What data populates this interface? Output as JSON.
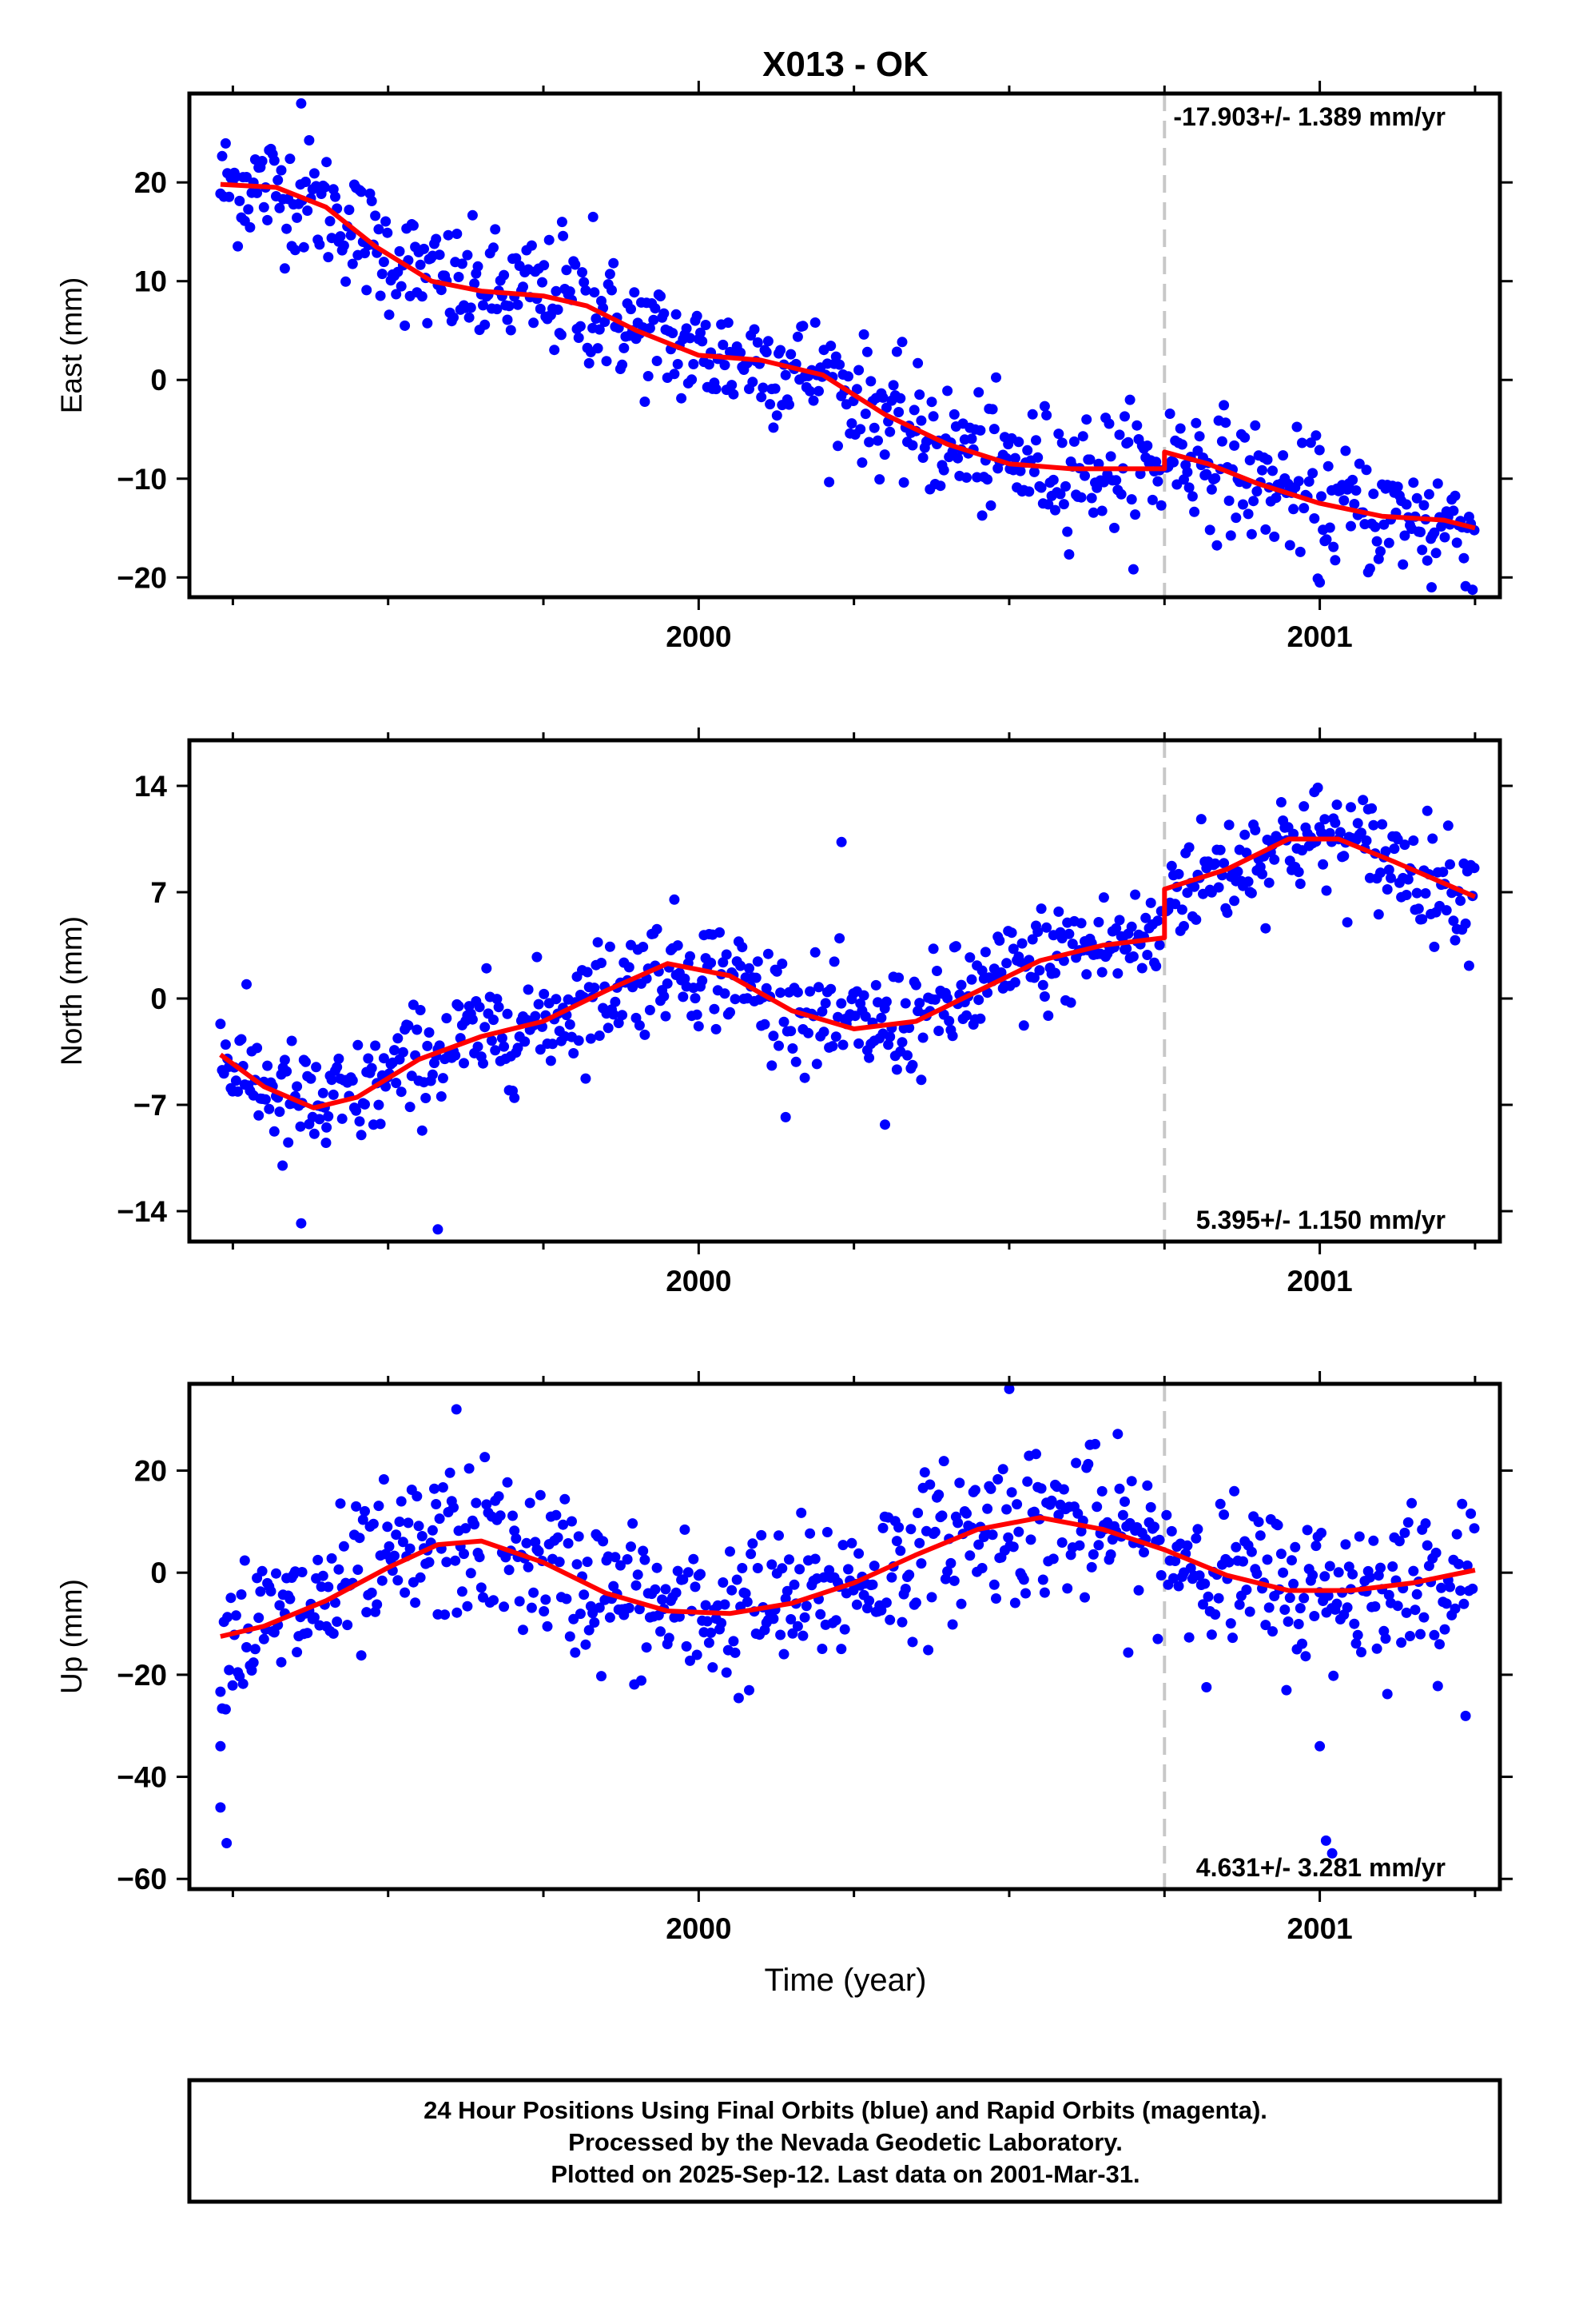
{
  "title": "X013 - OK",
  "x_axis_label": "Time (year)",
  "footer": {
    "line1": "24 Hour Positions Using Final Orbits (blue) and Rapid Orbits (magenta).",
    "line2": "Processed by the Nevada Geodetic Laboratory.",
    "line3": "Plotted on 2025-Sep-12. Last data on 2001-Mar-31."
  },
  "colors": {
    "points": "#0000ff",
    "model": "#ff0000",
    "break_line": "#c8c8c8"
  },
  "chart_data": [
    {
      "type": "scatter",
      "ylabel": "East (mm)",
      "xlim": [
        1999.18,
        2001.29
      ],
      "ylim": [
        -22,
        29
      ],
      "yticks": [
        -20,
        -10,
        0,
        10,
        20
      ],
      "xticks": [
        2000,
        2001
      ],
      "break_at": 2000.75,
      "rate_label": "-17.903+/- 1.389 mm/yr",
      "rate_position": "top-right",
      "model_trend": [
        [
          1999.23,
          19.8
        ],
        [
          1999.32,
          19.5
        ],
        [
          1999.4,
          17.5
        ],
        [
          1999.48,
          13.5
        ],
        [
          1999.57,
          10.0
        ],
        [
          1999.65,
          9.0
        ],
        [
          1999.75,
          8.5
        ],
        [
          1999.82,
          7.5
        ],
        [
          1999.9,
          5.0
        ],
        [
          2000.0,
          2.5
        ],
        [
          2000.1,
          2.0
        ],
        [
          2000.2,
          0.5
        ],
        [
          2000.3,
          -3.5
        ],
        [
          2000.4,
          -6.5
        ],
        [
          2000.5,
          -8.5
        ],
        [
          2000.6,
          -9.0
        ],
        [
          2000.7,
          -9.0
        ],
        [
          2000.75,
          -9.0
        ],
        [
          2000.75,
          -7.3
        ],
        [
          2000.82,
          -8.5
        ],
        [
          2000.9,
          -10.5
        ],
        [
          2001.0,
          -12.5
        ],
        [
          2001.1,
          -13.8
        ],
        [
          2001.2,
          -14.2
        ],
        [
          2001.25,
          -15.0
        ]
      ],
      "residual_scatter": 3.0,
      "outliers": [
        [
          1999.36,
          28.0
        ],
        [
          1999.78,
          16.0
        ],
        [
          1999.83,
          16.5
        ],
        [
          2001.0,
          -20.5
        ],
        [
          2001.18,
          -21.0
        ]
      ]
    },
    {
      "type": "scatter",
      "ylabel": "North (mm)",
      "xlim": [
        1999.18,
        2001.29
      ],
      "ylim": [
        -16,
        17
      ],
      "yticks": [
        -14,
        -7,
        0,
        7,
        14
      ],
      "xticks": [
        2000,
        2001
      ],
      "break_at": 2000.75,
      "rate_label": "5.395+/- 1.150 mm/yr",
      "rate_position": "bottom-right",
      "model_trend": [
        [
          1999.23,
          -3.7
        ],
        [
          1999.3,
          -5.8
        ],
        [
          1999.38,
          -7.2
        ],
        [
          1999.45,
          -6.5
        ],
        [
          1999.55,
          -4.0
        ],
        [
          1999.65,
          -2.5
        ],
        [
          1999.75,
          -1.5
        ],
        [
          1999.85,
          0.5
        ],
        [
          1999.95,
          2.3
        ],
        [
          2000.05,
          1.5
        ],
        [
          2000.15,
          -0.8
        ],
        [
          2000.25,
          -2.0
        ],
        [
          2000.35,
          -1.5
        ],
        [
          2000.45,
          0.5
        ],
        [
          2000.55,
          2.5
        ],
        [
          2000.65,
          3.5
        ],
        [
          2000.75,
          4.0
        ],
        [
          2000.75,
          7.2
        ],
        [
          2000.85,
          8.5
        ],
        [
          2000.95,
          10.5
        ],
        [
          2001.03,
          10.5
        ],
        [
          2001.12,
          9.0
        ],
        [
          2001.25,
          6.7
        ]
      ],
      "residual_scatter": 1.8,
      "outliers": [
        [
          1999.36,
          -14.8
        ],
        [
          1999.58,
          -15.2
        ],
        [
          1999.4,
          -9.5
        ],
        [
          1999.33,
          -11.0
        ],
        [
          2000.23,
          10.3
        ],
        [
          2000.3,
          -8.3
        ]
      ]
    },
    {
      "type": "scatter",
      "ylabel": "Up (mm)",
      "xlim": [
        1999.18,
        2001.29
      ],
      "ylim": [
        -62,
        37
      ],
      "yticks": [
        -60,
        -40,
        -20,
        0,
        20
      ],
      "xticks": [
        2000,
        2001
      ],
      "break_at": 2000.75,
      "rate_label": "4.631+/- 3.281 mm/yr",
      "rate_position": "bottom-right",
      "model_trend": [
        [
          1999.23,
          -12.5
        ],
        [
          1999.3,
          -10.5
        ],
        [
          1999.4,
          -5.5
        ],
        [
          1999.5,
          1.0
        ],
        [
          1999.58,
          5.5
        ],
        [
          1999.65,
          6.2
        ],
        [
          1999.75,
          2.0
        ],
        [
          1999.85,
          -4.0
        ],
        [
          1999.95,
          -7.5
        ],
        [
          2000.05,
          -8.0
        ],
        [
          2000.15,
          -6.0
        ],
        [
          2000.25,
          -2.0
        ],
        [
          2000.35,
          3.5
        ],
        [
          2000.45,
          8.5
        ],
        [
          2000.55,
          10.8
        ],
        [
          2000.65,
          8.5
        ],
        [
          2000.75,
          4.5
        ],
        [
          2000.85,
          -0.5
        ],
        [
          2000.95,
          -3.5
        ],
        [
          2001.05,
          -3.5
        ],
        [
          2001.15,
          -2.0
        ],
        [
          2001.25,
          0.5
        ]
      ],
      "residual_scatter": 7.5,
      "outliers": [
        [
          1999.23,
          -34.0
        ],
        [
          1999.23,
          -46.0
        ],
        [
          1999.24,
          -53.0
        ],
        [
          2001.0,
          -34.0
        ],
        [
          2001.01,
          -52.5
        ],
        [
          2001.02,
          -55.0
        ],
        [
          1999.61,
          32.0
        ],
        [
          2000.5,
          36.0
        ]
      ]
    }
  ]
}
